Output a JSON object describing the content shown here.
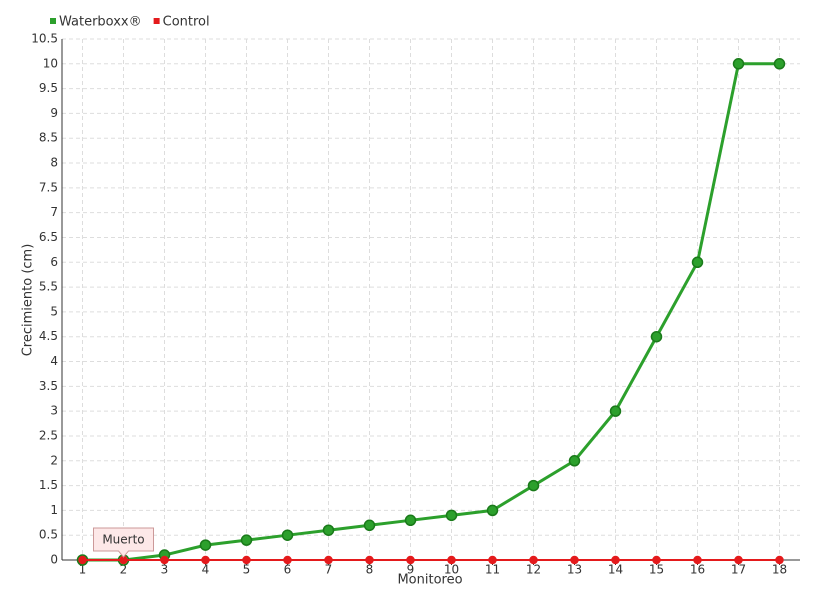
{
  "chart_data": {
    "type": "line",
    "x_label": "Monitoreo",
    "y_label": "Crecimiento (cm)",
    "categories": [
      "1",
      "2",
      "3",
      "4",
      "5",
      "6",
      "7",
      "8",
      "9",
      "10",
      "11",
      "12",
      "13",
      "14",
      "15",
      "16",
      "17",
      "18"
    ],
    "series": [
      {
        "name": "Waterboxx®",
        "color": "#2ca02c",
        "values": [
          0,
          0,
          0.1,
          0.3,
          0.4,
          0.5,
          0.6,
          0.7,
          0.8,
          0.9,
          1,
          1.5,
          2,
          3,
          4.5,
          6,
          10,
          10
        ]
      },
      {
        "name": "Control",
        "color": "#e41a1c",
        "values": [
          0,
          0,
          0,
          0,
          0,
          0,
          0,
          0,
          0,
          0,
          0,
          0,
          0,
          0,
          0,
          0,
          0,
          0
        ]
      }
    ],
    "annotation": "Muerto",
    "ylim": [
      0,
      10.5
    ],
    "yticks": [
      0,
      0.5,
      1,
      1.5,
      2,
      2.5,
      3,
      3.5,
      4,
      4.5,
      5,
      5.5,
      6,
      6.5,
      7,
      7.5,
      8,
      8.5,
      9,
      9.5,
      10,
      10.5
    ],
    "grid": true,
    "legend": "top-left"
  }
}
